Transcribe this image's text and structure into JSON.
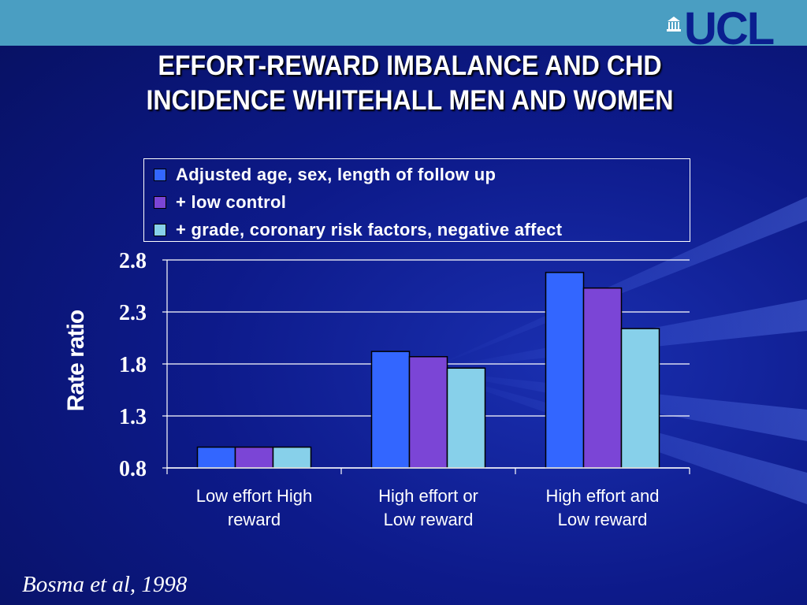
{
  "slide": {
    "title_line1": "EFFORT-REWARD IMBALANCE AND CHD",
    "title_line2": "INCIDENCE WHITEHALL MEN AND WOMEN",
    "logo_text": "UCL",
    "citation": "Bosma et al, 1998"
  },
  "colors": {
    "background": "#0d1a8a",
    "top_band": "#4a9ec2",
    "series1": "#3366ff",
    "series2": "#7b45d6",
    "series3": "#87d0ea"
  },
  "chart_data": {
    "type": "bar",
    "title": "",
    "xlabel": "",
    "ylabel": "Rate ratio",
    "ylim": [
      0.8,
      2.8
    ],
    "yticks": [
      "2.8",
      "2.3",
      "1.8",
      "1.3",
      "0.8"
    ],
    "ytick_values": [
      2.8,
      2.3,
      1.8,
      1.3,
      0.8
    ],
    "grid": true,
    "legend_position": "top",
    "categories": [
      [
        "Low effort High",
        "reward"
      ],
      [
        "High effort or",
        "Low reward"
      ],
      [
        "High effort and",
        "Low reward"
      ]
    ],
    "series": [
      {
        "name": "Adjusted age, sex, length of follow up",
        "values": [
          1.0,
          1.92,
          2.68
        ]
      },
      {
        "name": "+ low control",
        "values": [
          1.0,
          1.87,
          2.53
        ]
      },
      {
        "name": "+ grade, coronary risk factors, negative affect",
        "values": [
          1.0,
          1.76,
          2.14
        ]
      }
    ]
  }
}
